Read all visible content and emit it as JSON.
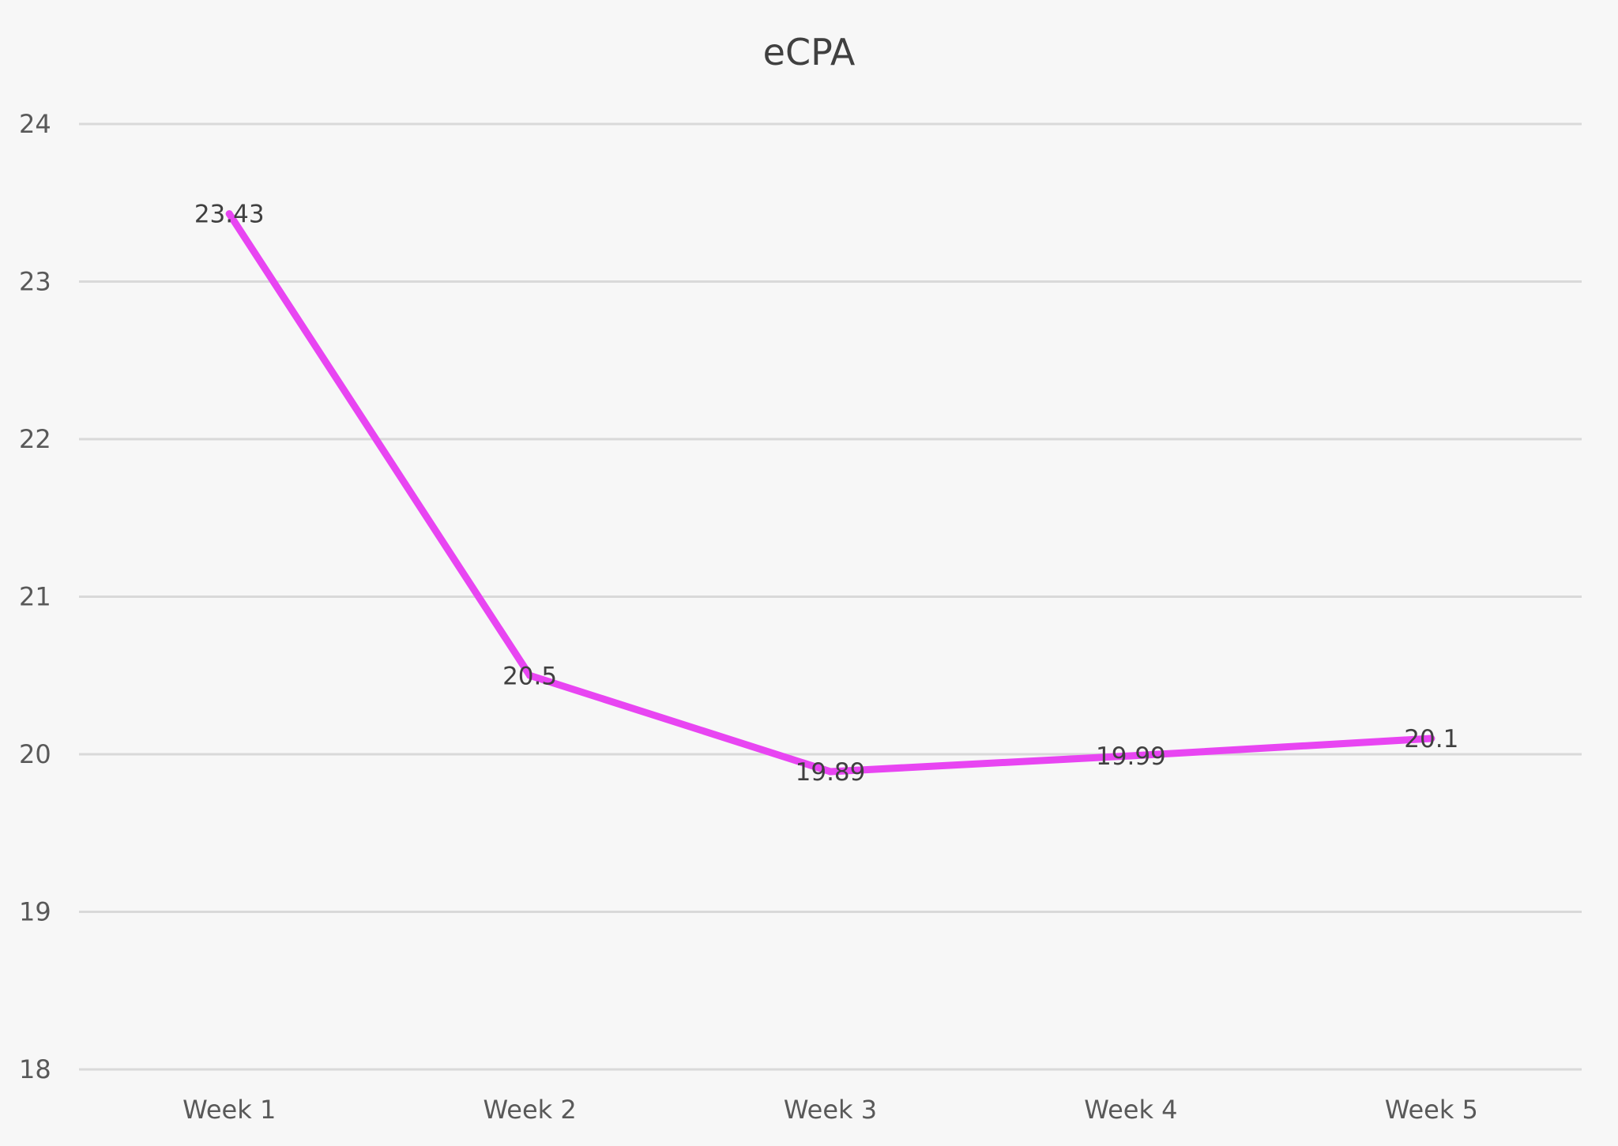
{
  "chart_data": {
    "type": "line",
    "title": "eCPA",
    "xlabel": "",
    "ylabel": "",
    "categories": [
      "Week 1",
      "Week 2",
      "Week 3",
      "Week 4",
      "Week 5"
    ],
    "series": [
      {
        "values": [
          23.43,
          20.5,
          19.89,
          19.99,
          20.1
        ],
        "color": "#e845f2",
        "data_labels": [
          "23.43",
          "20.5",
          "19.89",
          "19.99",
          "20.1"
        ]
      }
    ],
    "ylim": [
      18,
      24
    ],
    "yticks": [
      "18",
      "19",
      "20",
      "21",
      "22",
      "23",
      "24"
    ],
    "grid": true,
    "legend": "none"
  },
  "colors": {
    "background": "#f7f7f7",
    "gridline": "#d9d9d9",
    "line": "#e845f2",
    "text": "#595959"
  }
}
